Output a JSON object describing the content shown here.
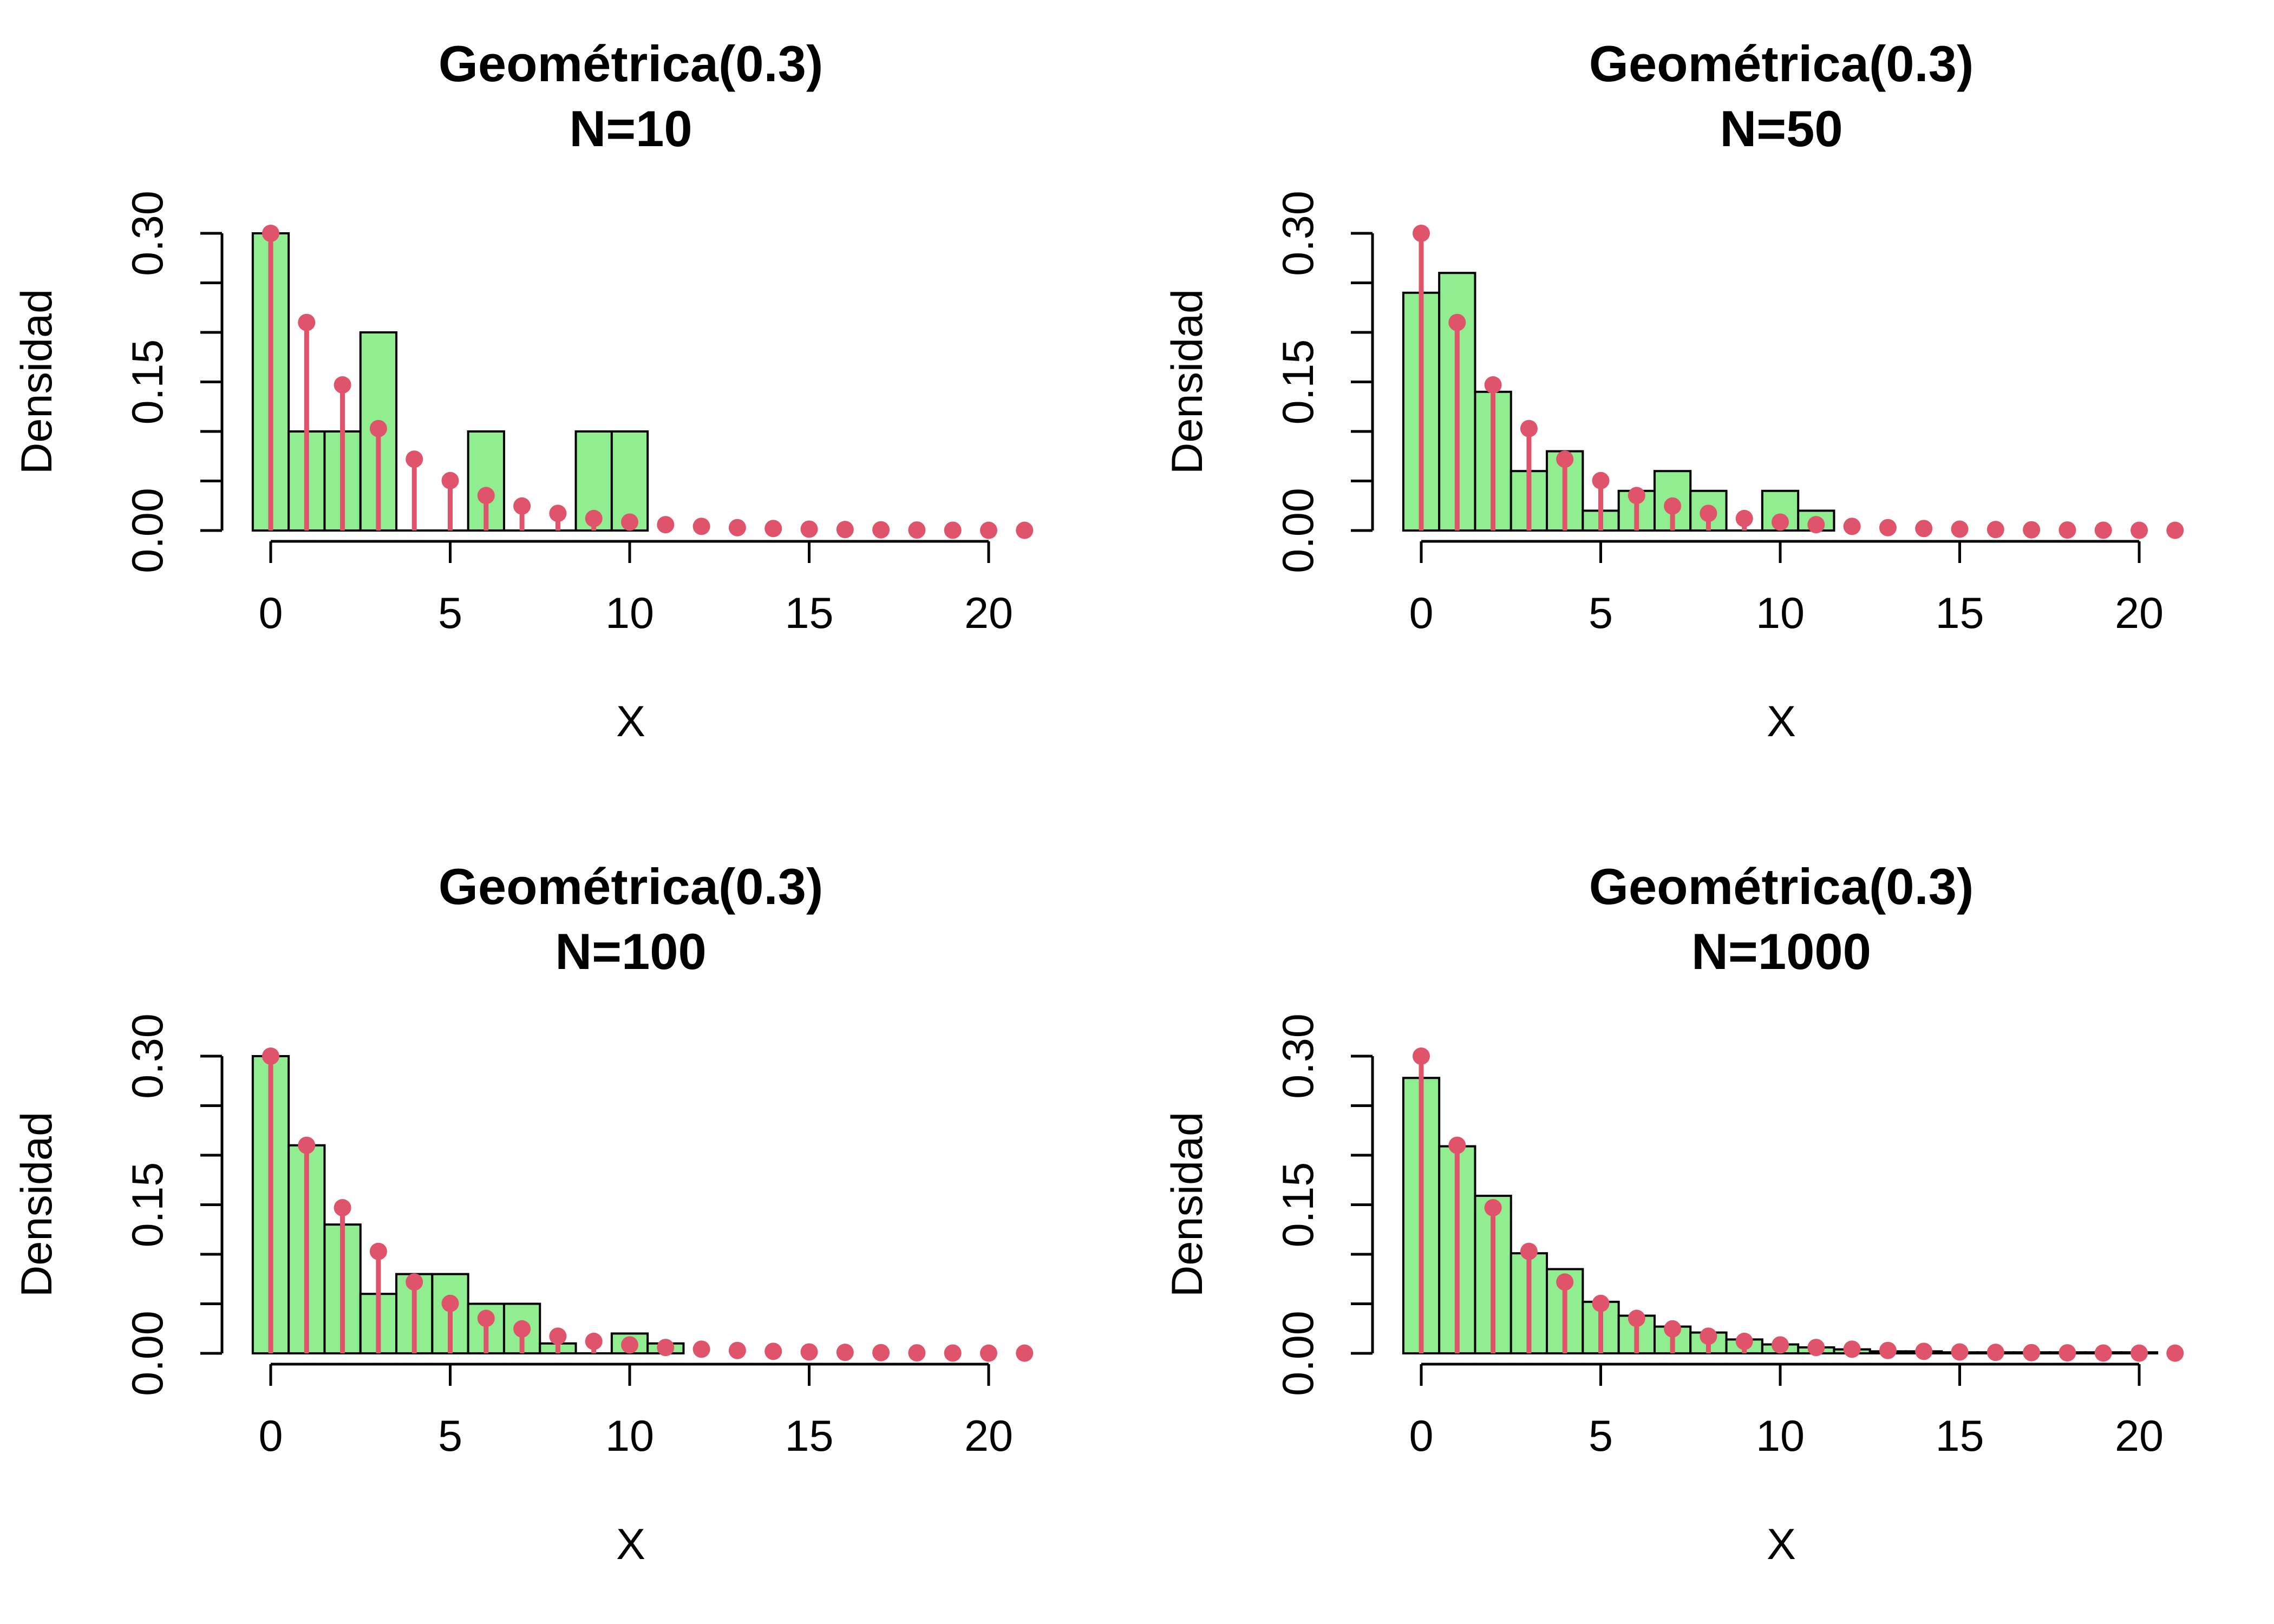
{
  "colors": {
    "bar_fill": "#90EE90",
    "bar_stroke": "#000000",
    "pmf": "#DF536B",
    "axis": "#000000"
  },
  "chart_data": [
    {
      "type": "bar",
      "title": "Geométrica(0.3)",
      "subtitle": "N=10",
      "xlabel": "X",
      "ylabel": "Densidad",
      "xlim": [
        -0.5,
        21
      ],
      "ylim": [
        0,
        0.3
      ],
      "xticks": [
        "0",
        "5",
        "10",
        "15",
        "20"
      ],
      "yticks": [
        "0.00",
        "0.15",
        "0.30"
      ],
      "grid": false,
      "histogram": {
        "breaks_start": -0.5,
        "bin_width": 1,
        "density": [
          0.3,
          0.1,
          0.1,
          0.2,
          0,
          0,
          0.1,
          0,
          0,
          0.1,
          0.1
        ]
      },
      "pmf": {
        "x": [
          0,
          1,
          2,
          3,
          4,
          5,
          6,
          7,
          8,
          9,
          10,
          11,
          12,
          13,
          14,
          15,
          16,
          17,
          18,
          19,
          20,
          21
        ],
        "y": [
          0.3,
          0.21,
          0.147,
          0.1029,
          0.072,
          0.0504,
          0.0353,
          0.0247,
          0.0173,
          0.0121,
          0.0085,
          0.0059,
          0.0042,
          0.0029,
          0.002,
          0.0014,
          0.001,
          0.0007,
          0.0005,
          0.0003,
          0.0002,
          0.0002
        ]
      }
    },
    {
      "type": "bar",
      "title": "Geométrica(0.3)",
      "subtitle": "N=50",
      "xlabel": "X",
      "ylabel": "Densidad",
      "xlim": [
        -0.5,
        21
      ],
      "ylim": [
        0,
        0.3
      ],
      "xticks": [
        "0",
        "5",
        "10",
        "15",
        "20"
      ],
      "yticks": [
        "0.00",
        "0.15",
        "0.30"
      ],
      "grid": false,
      "histogram": {
        "breaks_start": -0.5,
        "bin_width": 1,
        "density": [
          0.24,
          0.26,
          0.14,
          0.06,
          0.08,
          0.02,
          0.04,
          0.06,
          0.04,
          0,
          0.04,
          0.02
        ]
      },
      "pmf": {
        "x": [
          0,
          1,
          2,
          3,
          4,
          5,
          6,
          7,
          8,
          9,
          10,
          11,
          12,
          13,
          14,
          15,
          16,
          17,
          18,
          19,
          20,
          21
        ],
        "y": [
          0.3,
          0.21,
          0.147,
          0.1029,
          0.072,
          0.0504,
          0.0353,
          0.0247,
          0.0173,
          0.0121,
          0.0085,
          0.0059,
          0.0042,
          0.0029,
          0.002,
          0.0014,
          0.001,
          0.0007,
          0.0005,
          0.0003,
          0.0002,
          0.0002
        ]
      }
    },
    {
      "type": "bar",
      "title": "Geométrica(0.3)",
      "subtitle": "N=100",
      "xlabel": "X",
      "ylabel": "Densidad",
      "xlim": [
        -0.5,
        21
      ],
      "ylim": [
        0,
        0.3
      ],
      "xticks": [
        "0",
        "5",
        "10",
        "15",
        "20"
      ],
      "yticks": [
        "0.00",
        "0.15",
        "0.30"
      ],
      "grid": false,
      "histogram": {
        "breaks_start": -0.5,
        "bin_width": 1,
        "density": [
          0.3,
          0.21,
          0.13,
          0.06,
          0.08,
          0.08,
          0.05,
          0.05,
          0.01,
          0,
          0.02,
          0.01
        ]
      },
      "pmf": {
        "x": [
          0,
          1,
          2,
          3,
          4,
          5,
          6,
          7,
          8,
          9,
          10,
          11,
          12,
          13,
          14,
          15,
          16,
          17,
          18,
          19,
          20,
          21
        ],
        "y": [
          0.3,
          0.21,
          0.147,
          0.1029,
          0.072,
          0.0504,
          0.0353,
          0.0247,
          0.0173,
          0.0121,
          0.0085,
          0.0059,
          0.0042,
          0.0029,
          0.002,
          0.0014,
          0.001,
          0.0007,
          0.0005,
          0.0003,
          0.0002,
          0.0002
        ]
      }
    },
    {
      "type": "bar",
      "title": "Geométrica(0.3)",
      "subtitle": "N=1000",
      "xlabel": "X",
      "ylabel": "Densidad",
      "xlim": [
        -0.5,
        21
      ],
      "ylim": [
        0,
        0.3
      ],
      "xticks": [
        "0",
        "5",
        "10",
        "15",
        "20"
      ],
      "yticks": [
        "0.00",
        "0.15",
        "0.30"
      ],
      "grid": false,
      "histogram": {
        "breaks_start": -0.5,
        "bin_width": 1,
        "density": [
          0.278,
          0.209,
          0.159,
          0.101,
          0.085,
          0.052,
          0.038,
          0.027,
          0.021,
          0.014,
          0.009,
          0.006,
          0.004,
          0.002,
          0.002,
          0.001,
          0.001,
          0.001,
          0.001,
          0.001,
          0.001
        ]
      },
      "pmf": {
        "x": [
          0,
          1,
          2,
          3,
          4,
          5,
          6,
          7,
          8,
          9,
          10,
          11,
          12,
          13,
          14,
          15,
          16,
          17,
          18,
          19,
          20,
          21
        ],
        "y": [
          0.3,
          0.21,
          0.147,
          0.1029,
          0.072,
          0.0504,
          0.0353,
          0.0247,
          0.0173,
          0.0121,
          0.0085,
          0.0059,
          0.0042,
          0.0029,
          0.002,
          0.0014,
          0.001,
          0.0007,
          0.0005,
          0.0003,
          0.0002,
          0.0002
        ]
      }
    }
  ]
}
